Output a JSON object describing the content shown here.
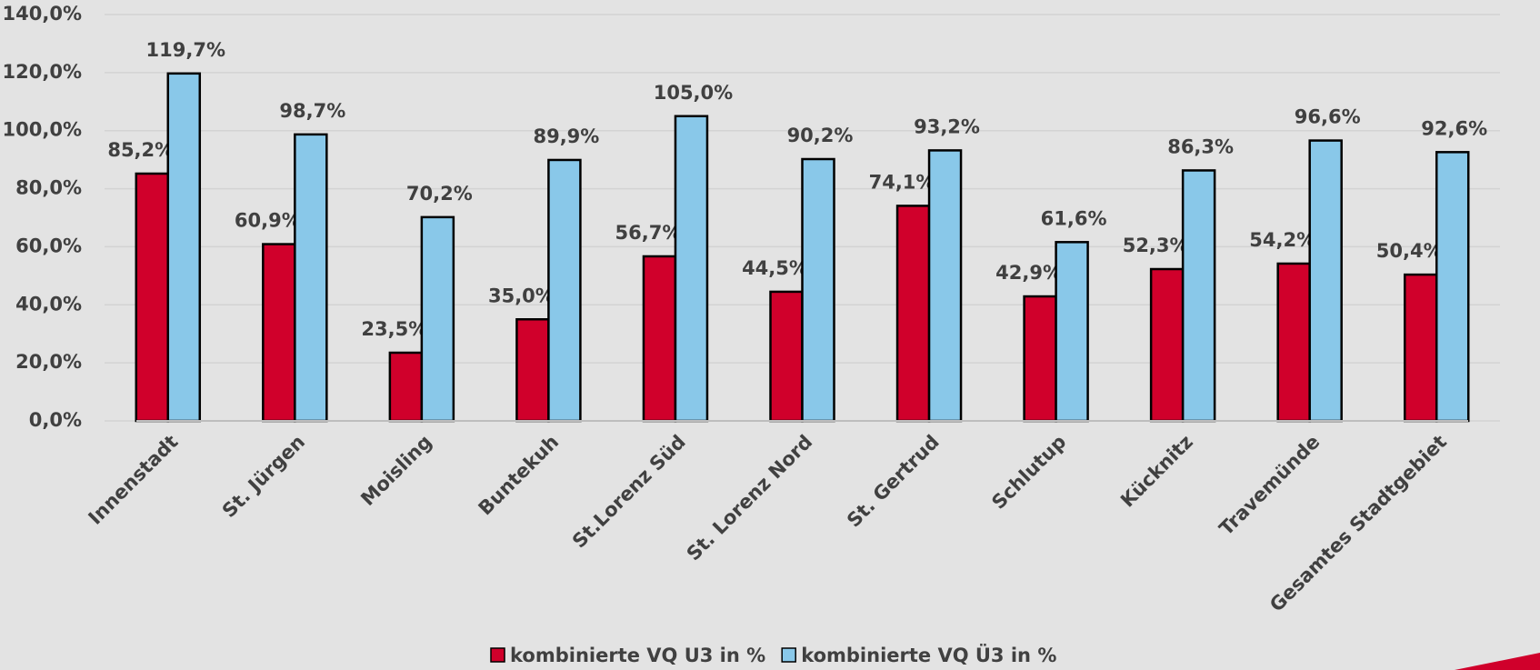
{
  "chart_data": {
    "type": "bar",
    "categories": [
      "Innenstadt",
      "St. Jürgen",
      "Moisling",
      "Buntekuh",
      "St.Lorenz Süd",
      "St. Lorenz Nord",
      "St. Gertrud",
      "Schlutup",
      "Kücknitz",
      "Travemünde",
      "Gesamtes Stadtgebiet"
    ],
    "series": [
      {
        "name": "kombinierte VQ U3 in %",
        "color": "#d0002b",
        "values": [
          85.2,
          60.9,
          23.5,
          35.0,
          56.7,
          44.5,
          74.1,
          42.9,
          52.3,
          54.2,
          50.4
        ],
        "value_labels": [
          "85,2%",
          "60,9%",
          "23,5%",
          "35,0%",
          "56,7%",
          "44,5%",
          "74,1%",
          "42,9%",
          "52,3%",
          "54,2%",
          "50,4%"
        ]
      },
      {
        "name": "kombinierte VQ Ü3 in %",
        "color": "#89c8e9",
        "values": [
          119.7,
          98.7,
          70.2,
          89.9,
          105.0,
          90.2,
          93.2,
          61.6,
          86.3,
          96.6,
          92.6
        ],
        "value_labels": [
          "119,7%",
          "98,7%",
          "70,2%",
          "89,9%",
          "105,0%",
          "90,2%",
          "93,2%",
          "61,6%",
          "86,3%",
          "96,6%",
          "92,6%"
        ]
      }
    ],
    "ylim": [
      0,
      140
    ],
    "yticks": [
      {
        "value": 0,
        "label": "0,0%"
      },
      {
        "value": 20,
        "label": "20,0%"
      },
      {
        "value": 40,
        "label": "40,0%"
      },
      {
        "value": 60,
        "label": "60,0%"
      },
      {
        "value": 80,
        "label": "80,0%"
      },
      {
        "value": 100,
        "label": "100,0%"
      },
      {
        "value": 120,
        "label": "120,0%"
      },
      {
        "value": 140,
        "label": "140,0%"
      }
    ],
    "grid": true,
    "legend": "bottom"
  }
}
